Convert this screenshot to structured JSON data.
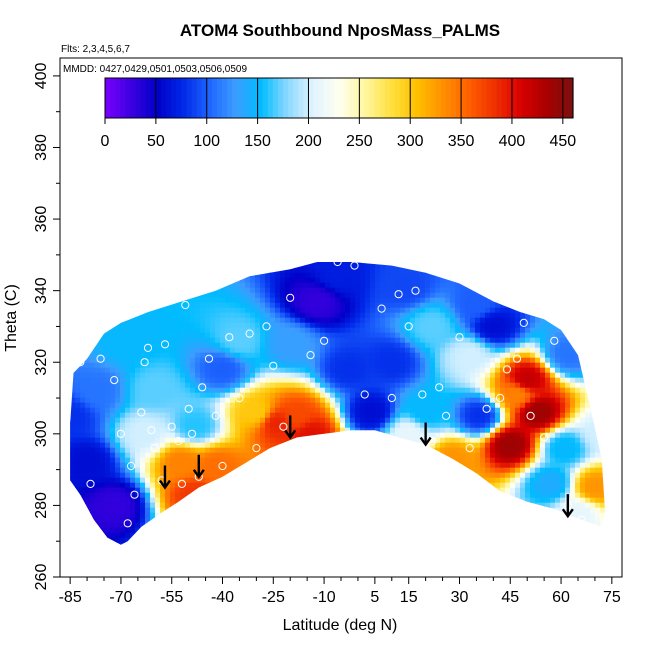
{
  "chart_data": {
    "type": "heatmap",
    "title": "ATOM4 Southbound NposMass_PALMS",
    "notes": [
      "Flts: 2,3,4,5,6,7",
      "MMDD: 0427,0429,0501,0503,0506,0509"
    ],
    "xlabel": "Latitude (deg N)",
    "ylabel": "Theta (C)",
    "xlim": [
      -88,
      78
    ],
    "ylim": [
      260,
      405
    ],
    "x_ticks": [
      -85,
      -70,
      -55,
      -40,
      -25,
      -10,
      5,
      15,
      30,
      45,
      60,
      75
    ],
    "y_ticks": [
      260,
      280,
      300,
      320,
      340,
      360,
      380,
      400
    ],
    "grid": false,
    "colorbar": {
      "placement": "top",
      "range": [
        0,
        460
      ],
      "ticks": [
        0,
        50,
        100,
        150,
        200,
        250,
        300,
        350,
        400,
        450
      ],
      "colors": [
        "#7a00ff",
        "#3c00e0",
        "#0000c8",
        "#0028e8",
        "#1e64ff",
        "#3c9cff",
        "#00bcff",
        "#8ad8ff",
        "#e0f4ff",
        "#fffff0",
        "#fff7a0",
        "#ffe040",
        "#ffc000",
        "#ff9000",
        "#ff6000",
        "#f03000",
        "#d80000",
        "#a80000",
        "#7a1010"
      ]
    },
    "domain_outline": {
      "top": [
        [
          -85,
          303
        ],
        [
          -84,
          317
        ],
        [
          -80,
          321
        ],
        [
          -75,
          328
        ],
        [
          -70,
          331
        ],
        [
          -62,
          334
        ],
        [
          -52,
          337
        ],
        [
          -42,
          340
        ],
        [
          -32,
          344
        ],
        [
          -20,
          346
        ],
        [
          -12,
          348
        ],
        [
          -2,
          348
        ],
        [
          10,
          347
        ],
        [
          20,
          345
        ],
        [
          30,
          342
        ],
        [
          40,
          337
        ],
        [
          48,
          334
        ],
        [
          55,
          332
        ],
        [
          60,
          329
        ],
        [
          65,
          322
        ],
        [
          68,
          310
        ],
        [
          72,
          293
        ],
        [
          73,
          278
        ],
        [
          72,
          274
        ]
      ],
      "bottom": [
        [
          72,
          274
        ],
        [
          66,
          276
        ],
        [
          58,
          279
        ],
        [
          50,
          281
        ],
        [
          42,
          284
        ],
        [
          35,
          289
        ],
        [
          28,
          293
        ],
        [
          20,
          297
        ],
        [
          12,
          299
        ],
        [
          5,
          301
        ],
        [
          -2,
          301
        ],
        [
          -10,
          300
        ],
        [
          -18,
          299
        ],
        [
          -26,
          296
        ],
        [
          -33,
          292
        ],
        [
          -40,
          288
        ],
        [
          -47,
          285
        ],
        [
          -53,
          281
        ],
        [
          -58,
          278
        ],
        [
          -64,
          274
        ],
        [
          -68,
          270
        ],
        [
          -70,
          269
        ],
        [
          -74,
          271
        ],
        [
          -78,
          276
        ],
        [
          -82,
          283
        ],
        [
          -85,
          287
        ]
      ]
    },
    "blobs": [
      {
        "x": -85,
        "y": 305,
        "value": 80
      },
      {
        "x": -80,
        "y": 292,
        "value": 60
      },
      {
        "x": -77,
        "y": 312,
        "value": 110
      },
      {
        "x": -72,
        "y": 280,
        "value": 30
      },
      {
        "x": -68,
        "y": 326,
        "value": 150
      },
      {
        "x": -63,
        "y": 300,
        "value": 200
      },
      {
        "x": -60,
        "y": 312,
        "value": 170
      },
      {
        "x": -52,
        "y": 292,
        "value": 340
      },
      {
        "x": -48,
        "y": 283,
        "value": 380
      },
      {
        "x": -48,
        "y": 302,
        "value": 160
      },
      {
        "x": -42,
        "y": 291,
        "value": 350
      },
      {
        "x": -40,
        "y": 318,
        "value": 100
      },
      {
        "x": -35,
        "y": 326,
        "value": 170
      },
      {
        "x": -30,
        "y": 306,
        "value": 300
      },
      {
        "x": -24,
        "y": 303,
        "value": 390
      },
      {
        "x": -18,
        "y": 305,
        "value": 370
      },
      {
        "x": -14,
        "y": 300,
        "value": 400
      },
      {
        "x": -20,
        "y": 325,
        "value": 130
      },
      {
        "x": -12,
        "y": 337,
        "value": 30
      },
      {
        "x": -3,
        "y": 318,
        "value": 80
      },
      {
        "x": 4,
        "y": 306,
        "value": 60
      },
      {
        "x": 10,
        "y": 320,
        "value": 80
      },
      {
        "x": 15,
        "y": 300,
        "value": 210
      },
      {
        "x": 20,
        "y": 306,
        "value": 150
      },
      {
        "x": 22,
        "y": 330,
        "value": 170
      },
      {
        "x": 28,
        "y": 293,
        "value": 330
      },
      {
        "x": 33,
        "y": 322,
        "value": 200
      },
      {
        "x": 36,
        "y": 305,
        "value": 80
      },
      {
        "x": 40,
        "y": 330,
        "value": 60
      },
      {
        "x": 45,
        "y": 297,
        "value": 440
      },
      {
        "x": 47,
        "y": 311,
        "value": 340
      },
      {
        "x": 50,
        "y": 315,
        "value": 420
      },
      {
        "x": 53,
        "y": 306,
        "value": 440
      },
      {
        "x": 57,
        "y": 286,
        "value": 140
      },
      {
        "x": 61,
        "y": 296,
        "value": 150
      },
      {
        "x": 62,
        "y": 322,
        "value": 110
      },
      {
        "x": 65,
        "y": 278,
        "value": 210
      },
      {
        "x": 70,
        "y": 285,
        "value": 330
      },
      {
        "x": 72,
        "y": 300,
        "value": 200
      },
      {
        "x": -6,
        "y": 344,
        "value": 70
      },
      {
        "x": 14,
        "y": 341,
        "value": 90
      },
      {
        "x": 35,
        "y": 336,
        "value": 100
      }
    ],
    "sample_points": [
      [
        -82,
        320
      ],
      [
        -79,
        286
      ],
      [
        -76,
        321
      ],
      [
        -72,
        315
      ],
      [
        -70,
        300
      ],
      [
        -68,
        275
      ],
      [
        -67,
        291
      ],
      [
        -66,
        283
      ],
      [
        -64,
        306
      ],
      [
        -63,
        320
      ],
      [
        -62,
        324
      ],
      [
        -61,
        301
      ],
      [
        -60,
        296
      ],
      [
        -58,
        287
      ],
      [
        -57,
        325
      ],
      [
        -55,
        302
      ],
      [
        -53,
        298
      ],
      [
        -52,
        286
      ],
      [
        -51,
        336
      ],
      [
        -50,
        307
      ],
      [
        -49,
        300
      ],
      [
        -47,
        288
      ],
      [
        -46,
        313
      ],
      [
        -44,
        321
      ],
      [
        -42,
        305
      ],
      [
        -40,
        291
      ],
      [
        -38,
        327
      ],
      [
        -35,
        310
      ],
      [
        -32,
        328
      ],
      [
        -30,
        296
      ],
      [
        -27,
        330
      ],
      [
        -25,
        319
      ],
      [
        -22,
        302
      ],
      [
        -20,
        338
      ],
      [
        -14,
        322
      ],
      [
        -10,
        326
      ],
      [
        -6,
        348
      ],
      [
        -1,
        347
      ],
      [
        2,
        311
      ],
      [
        7,
        335
      ],
      [
        10,
        310
      ],
      [
        12,
        339
      ],
      [
        15,
        330
      ],
      [
        17,
        340
      ],
      [
        19,
        311
      ],
      [
        22,
        298
      ],
      [
        24,
        313
      ],
      [
        26,
        305
      ],
      [
        30,
        327
      ],
      [
        33,
        296
      ],
      [
        38,
        307
      ],
      [
        42,
        310
      ],
      [
        44,
        318
      ],
      [
        47,
        321
      ],
      [
        49,
        331
      ],
      [
        51,
        305
      ],
      [
        55,
        299
      ],
      [
        58,
        326
      ],
      [
        62,
        280
      ],
      [
        66,
        276
      ]
    ],
    "markers": [
      {
        "x": -57,
        "y": 285
      },
      {
        "x": -47,
        "y": 288
      },
      {
        "x": -20,
        "y": 299
      },
      {
        "x": 20,
        "y": 297
      },
      {
        "x": 62,
        "y": 277
      }
    ],
    "label_colors": {
      "marker": "#000000",
      "point": "#ffffff"
    }
  }
}
